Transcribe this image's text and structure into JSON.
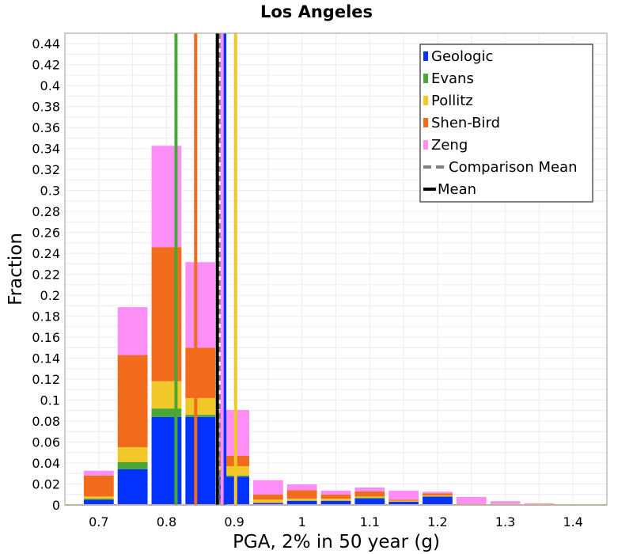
{
  "chart_data": {
    "type": "bar",
    "stacked": true,
    "title": "Los Angeles",
    "xlabel": "PGA, 2% in 50 year (g)",
    "ylabel": "Fraction",
    "xlim": [
      0.65,
      1.45
    ],
    "ylim": [
      0,
      0.45
    ],
    "bin_width": 0.05,
    "grid": true,
    "legend_position": "top-right",
    "x_ticks": [
      0.7,
      0.8,
      0.9,
      1.0,
      1.1,
      1.2,
      1.3,
      1.4
    ],
    "x_tick_labels": [
      "0.7",
      "0.8",
      "0.9",
      "1",
      "1.1",
      "1.2",
      "1.3",
      "1.4"
    ],
    "y_ticks": [
      0,
      0.02,
      0.04,
      0.06,
      0.08,
      0.1,
      0.12,
      0.14,
      0.16,
      0.18,
      0.2,
      0.22,
      0.24,
      0.26,
      0.28,
      0.3,
      0.32,
      0.34,
      0.36,
      0.38,
      0.4,
      0.42,
      0.44
    ],
    "y_tick_labels": [
      "0",
      "0.02",
      "0.04",
      "0.06",
      "0.08",
      "0.1",
      "0.12",
      "0.14",
      "0.16",
      "0.18",
      "0.2",
      "0.22",
      "0.24",
      "0.26",
      "0.28",
      "0.3",
      "0.32",
      "0.34",
      "0.36",
      "0.38",
      "0.4",
      "0.42",
      "0.44"
    ],
    "bin_centers": [
      0.7,
      0.75,
      0.8,
      0.85,
      0.9,
      0.95,
      1.0,
      1.05,
      1.1,
      1.15,
      1.2,
      1.25,
      1.3,
      1.35,
      1.4
    ],
    "series": [
      {
        "name": "Geologic",
        "color": "#0433ff",
        "values": [
          0.005,
          0.034,
          0.084,
          0.084,
          0.027,
          0.002,
          0.004,
          0.004,
          0.006,
          0.003,
          0.008,
          0.0,
          0.0,
          0.0,
          0.0
        ]
      },
      {
        "name": "Evans",
        "color": "#4ba735",
        "values": [
          0.001,
          0.007,
          0.008,
          0.002,
          0.001,
          0.0,
          0.0,
          0.0,
          0.001,
          0.0,
          0.0,
          0.0,
          0.0,
          0.0,
          0.0
        ]
      },
      {
        "name": "Pollitz",
        "color": "#f2c829",
        "values": [
          0.002,
          0.014,
          0.026,
          0.016,
          0.009,
          0.003,
          0.002,
          0.002,
          0.001,
          0.001,
          0.001,
          0.0,
          0.001,
          0.001,
          0.0
        ]
      },
      {
        "name": "Shen-Bird",
        "color": "#f26a1b",
        "values": [
          0.02,
          0.088,
          0.128,
          0.048,
          0.01,
          0.005,
          0.008,
          0.004,
          0.005,
          0.001,
          0.002,
          0.001,
          0.0,
          0.0,
          0.0
        ]
      },
      {
        "name": "Zeng",
        "color": "#fc8ef5",
        "values": [
          0.005,
          0.046,
          0.097,
          0.082,
          0.044,
          0.014,
          0.006,
          0.004,
          0.004,
          0.009,
          0.002,
          0.007,
          0.003,
          0.001,
          0.0
        ]
      }
    ],
    "vertical_lines": [
      {
        "name": "Geologic",
        "x": 0.886,
        "color": "#0433ff",
        "style": "solid"
      },
      {
        "name": "Evans",
        "x": 0.814,
        "color": "#4ba735",
        "style": "solid"
      },
      {
        "name": "Pollitz",
        "x": 0.902,
        "color": "#f2c829",
        "style": "solid"
      },
      {
        "name": "Shen-Bird",
        "x": 0.843,
        "color": "#f26a1b",
        "style": "solid"
      },
      {
        "name": "Zeng",
        "x": 0.882,
        "color": "#fc8ef5",
        "style": "solid"
      },
      {
        "name": "Comparison Mean",
        "x": 0.878,
        "color": "#808080",
        "style": "dashed"
      },
      {
        "name": "Mean",
        "x": 0.875,
        "color": "#000000",
        "style": "solid"
      }
    ],
    "legend": [
      {
        "label": "Geologic",
        "color": "#0433ff",
        "kind": "swatch"
      },
      {
        "label": "Evans",
        "color": "#4ba735",
        "kind": "swatch"
      },
      {
        "label": "Pollitz",
        "color": "#f2c829",
        "kind": "swatch"
      },
      {
        "label": "Shen-Bird",
        "color": "#f26a1b",
        "kind": "swatch"
      },
      {
        "label": "Zeng",
        "color": "#fc8ef5",
        "kind": "swatch"
      },
      {
        "label": "Comparison Mean",
        "color": "#808080",
        "kind": "dashed"
      },
      {
        "label": "Mean",
        "color": "#000000",
        "kind": "line"
      }
    ]
  }
}
